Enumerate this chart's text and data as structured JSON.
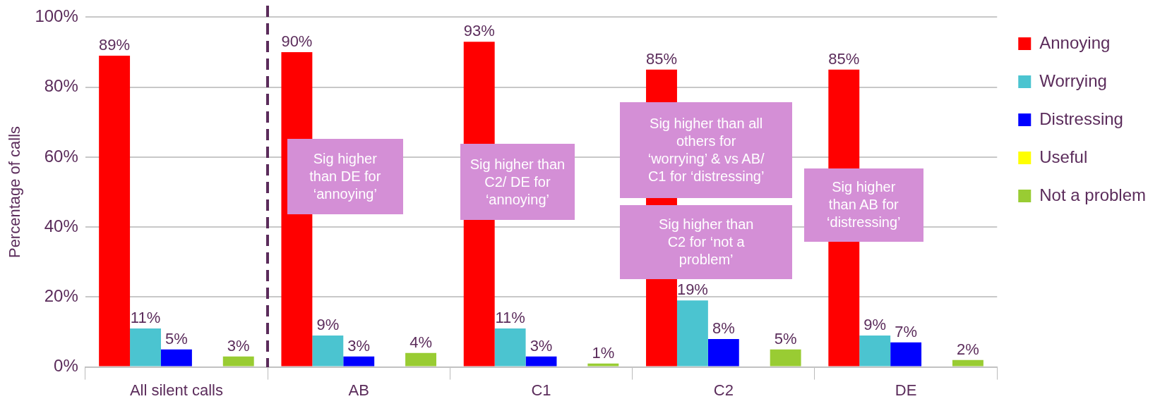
{
  "chart_data": {
    "type": "bar",
    "ylabel": "Percentage of calls",
    "categories": [
      "All silent calls",
      "AB",
      "C1",
      "C2",
      "DE"
    ],
    "series": [
      {
        "name": "Annoying",
        "color": "#ff0000",
        "values": [
          89,
          90,
          93,
          85,
          85
        ],
        "value_labels": [
          "89%",
          "90%",
          "93%",
          "85%",
          "85%"
        ]
      },
      {
        "name": "Worrying",
        "color": "#4bc4d0",
        "values": [
          11,
          9,
          11,
          19,
          9
        ],
        "value_labels": [
          "11%",
          "9%",
          "11%",
          "19%",
          "9%"
        ]
      },
      {
        "name": "Distressing",
        "color": "#0000ff",
        "values": [
          5,
          3,
          3,
          8,
          7
        ],
        "value_labels": [
          "5%",
          "3%",
          "3%",
          "8%",
          "7%"
        ]
      },
      {
        "name": "Useful",
        "color": "#ffff00",
        "values": [
          0,
          0,
          0,
          0,
          0
        ],
        "value_labels": [
          null,
          null,
          null,
          null,
          null
        ]
      },
      {
        "name": "Not a problem",
        "color": "#99cc33",
        "values": [
          3,
          4,
          1,
          5,
          2
        ],
        "value_labels": [
          "3%",
          "4%",
          "1%",
          "5%",
          "2%"
        ]
      }
    ],
    "ylim": [
      0,
      100
    ],
    "yticks": [
      {
        "value": 0,
        "label": "0%"
      },
      {
        "value": 20,
        "label": "20%"
      },
      {
        "value": 40,
        "label": "40%"
      },
      {
        "value": 60,
        "label": "60%"
      },
      {
        "value": 80,
        "label": "80%"
      },
      {
        "value": 100,
        "label": "100%"
      }
    ],
    "grid": "y",
    "legend": "right",
    "annotations": [
      "Sig higher\nthan DE for\n‘annoying’",
      "Sig higher than\nC2/ DE for\n‘annoying’",
      "Sig higher than all\nothers for\n‘worrying’ & vs AB/\nC1 for ‘distressing’",
      "Sig higher than\nC2 for ‘not a\nproblem’",
      "Sig higher\nthan AB for\n‘distressing’"
    ]
  }
}
